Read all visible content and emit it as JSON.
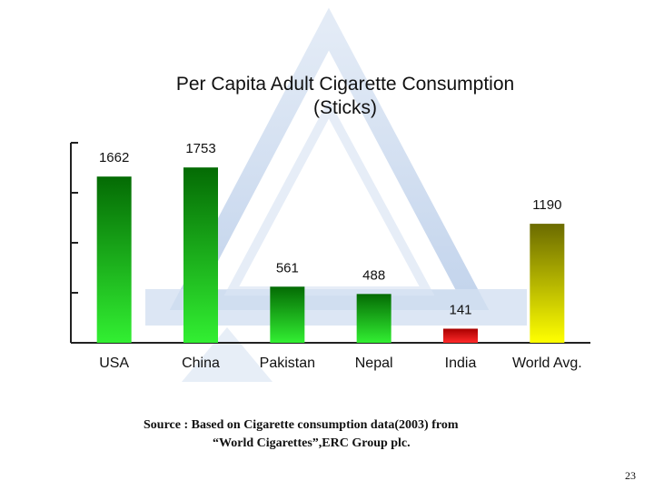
{
  "colors": {
    "watermark": "#cfdcef",
    "gray_high": "#046b04",
    "green_low": "#32ef32",
    "india_top": "#a80000",
    "india_bottom": "#ff2a2a",
    "world_top": "#6b6b00",
    "world_bottom": "#ffff00",
    "axis": "#222222"
  },
  "chart_data": {
    "type": "bar",
    "title": [
      "Per Capita Adult Cigarette Consumption",
      "(Sticks)"
    ],
    "categories": [
      "USA",
      "China",
      "Pakistan",
      "Nepal",
      "India",
      "World Avg."
    ],
    "values": [
      1662,
      1753,
      561,
      488,
      141,
      1190
    ],
    "data_labels": [
      "1662",
      "1753",
      "561",
      "488",
      "141",
      "1190"
    ],
    "ylim": [
      0,
      2000
    ],
    "gridlines": false,
    "legend": "none"
  },
  "source": {
    "line1": "Source :   Based on Cigarette consumption data(2003) from",
    "line2": "“World Cigarettes”,ERC Group plc."
  },
  "page_number": "23"
}
